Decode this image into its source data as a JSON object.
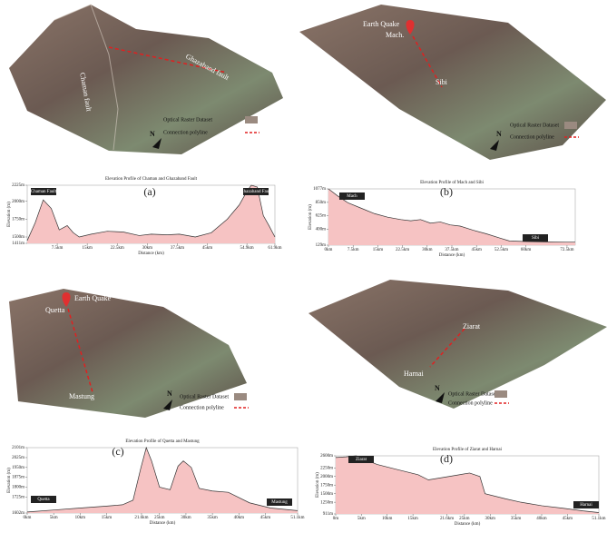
{
  "terrains": [
    {
      "labels": [
        "Chaman fault",
        "Ghazaband fault"
      ],
      "legend": [
        "Optical Raster Dataset",
        "Connection polyline"
      ],
      "north": "N"
    },
    {
      "labels": [
        "Earth Quake",
        "Mach.",
        "Sibi"
      ],
      "legend": [
        "Optical Raster Dataset",
        "Connection polyline"
      ],
      "north": "N"
    },
    {
      "labels": [
        "Earth Quake",
        "Quetta",
        "Mastung"
      ],
      "legend": [
        "Optical Raster Dataset",
        "Connection polyline"
      ],
      "north": "N"
    },
    {
      "labels": [
        "Ziarat",
        "Harnai"
      ],
      "legend": [
        "Optical Raster Dataset",
        "Connection polyline"
      ],
      "north": "N"
    }
  ],
  "chart_data": [
    {
      "type": "area",
      "title": "Elevation Profile of Chaman and Ghazaband Fault",
      "panel": "(a)",
      "x_label": "Distance (km)",
      "y_label": "Elevation (m)",
      "annotations": [
        "Chaman Fault",
        "Ghazaband Fault"
      ],
      "color": "#f6c3c3",
      "line_color": "#333333",
      "x": [
        0,
        2,
        4,
        6,
        8,
        10,
        11.5,
        13,
        16,
        20,
        24,
        28,
        31,
        35,
        38,
        42,
        46,
        50,
        53,
        55,
        56,
        57.5,
        59,
        60.5,
        61.9
      ],
      "values": [
        1450,
        1700,
        2020,
        1900,
        1600,
        1660,
        1560,
        1500,
        1540,
        1580,
        1570,
        1520,
        1540,
        1530,
        1540,
        1500,
        1560,
        1750,
        1950,
        2150,
        2225,
        2200,
        1800,
        1650,
        1500
      ],
      "xlim": [
        0,
        61.9
      ],
      "ylim": [
        1411,
        2225
      ],
      "xticks": [
        {
          "value": 7.5,
          "label": "7.5km"
        },
        {
          "value": 15,
          "label": "15km"
        },
        {
          "value": 22.5,
          "label": "22.5km"
        },
        {
          "value": 30,
          "label": "30km"
        },
        {
          "value": 37.5,
          "label": "37.5km"
        },
        {
          "value": 45,
          "label": "45km"
        },
        {
          "value": 54.9,
          "label": "54.9km"
        },
        {
          "value": 61.9,
          "label": "61.9km"
        }
      ],
      "yticks": [
        {
          "value": 1411,
          "label": "1411m"
        },
        {
          "value": 1500,
          "label": "1500m"
        },
        {
          "value": 1750,
          "label": "1750m"
        },
        {
          "value": 2000,
          "label": "2000m"
        },
        {
          "value": 2225,
          "label": "2225m"
        }
      ]
    },
    {
      "type": "area",
      "title": "Elevation Profile of Mach and Sibi",
      "panel": "(b)",
      "x_label": "Distance (km)",
      "y_label": "Elevation (m)",
      "annotations": [
        "Mach",
        "Sibi"
      ],
      "color": "#f6c3c3",
      "line_color": "#333333",
      "x": [
        0,
        3,
        6,
        10,
        14,
        18,
        22,
        25,
        28,
        31,
        34,
        37,
        40,
        44,
        48,
        52,
        55,
        60,
        66,
        72,
        75
      ],
      "values": [
        1077,
        950,
        840,
        750,
        660,
        600,
        560,
        540,
        560,
        500,
        520,
        470,
        450,
        380,
        320,
        250,
        200,
        190,
        185,
        180,
        180
      ],
      "xlim": [
        0,
        75
      ],
      "ylim": [
        129,
        1077
      ],
      "xticks": [
        {
          "value": 0,
          "label": "0km"
        },
        {
          "value": 7.5,
          "label": "7.5km"
        },
        {
          "value": 15,
          "label": "15km"
        },
        {
          "value": 22.5,
          "label": "22.5km"
        },
        {
          "value": 30,
          "label": "30km"
        },
        {
          "value": 37.5,
          "label": "37.5km"
        },
        {
          "value": 45,
          "label": "45km"
        },
        {
          "value": 52.5,
          "label": "52.5km"
        },
        {
          "value": 60,
          "label": "60km"
        },
        {
          "value": 72.5,
          "label": "72.5km"
        }
      ],
      "yticks": [
        {
          "value": 129,
          "label": "129m"
        },
        {
          "value": 400,
          "label": "400m"
        },
        {
          "value": 625,
          "label": "625m"
        },
        {
          "value": 850,
          "label": "850m"
        },
        {
          "value": 1077,
          "label": "1077m"
        }
      ]
    },
    {
      "type": "area",
      "title": "Elevation Profile of Quetta and Mastung",
      "panel": "(c)",
      "x_label": "Distance (km)",
      "y_label": "Elevation (m)",
      "annotations": [
        "Quetta",
        "Mastung"
      ],
      "color": "#f6c3c3",
      "line_color": "#333333",
      "x": [
        0,
        5,
        10,
        15,
        18,
        20,
        21.5,
        22.5,
        23.5,
        25,
        27,
        28.5,
        29.5,
        31,
        32.5,
        35,
        38,
        42,
        46,
        51.1
      ],
      "values": [
        1610,
        1625,
        1640,
        1655,
        1665,
        1700,
        1950,
        2101,
        2000,
        1800,
        1780,
        1960,
        2000,
        1950,
        1790,
        1770,
        1760,
        1680,
        1640,
        1620
      ],
      "xlim": [
        0,
        51.1
      ],
      "ylim": [
        1602,
        2101
      ],
      "xticks": [
        {
          "value": 0,
          "label": "0km"
        },
        {
          "value": 5,
          "label": "5km"
        },
        {
          "value": 10,
          "label": "10km"
        },
        {
          "value": 15,
          "label": "15km"
        },
        {
          "value": 21.6,
          "label": "21.6km"
        },
        {
          "value": 25,
          "label": "25km"
        },
        {
          "value": 30,
          "label": "30km"
        },
        {
          "value": 35,
          "label": "35km"
        },
        {
          "value": 40,
          "label": "40km"
        },
        {
          "value": 45,
          "label": "45km"
        },
        {
          "value": 51.1,
          "label": "51.1km"
        }
      ],
      "yticks": [
        {
          "value": 1602,
          "label": "1602m"
        },
        {
          "value": 1725,
          "label": "1725m"
        },
        {
          "value": 1800,
          "label": "1800m"
        },
        {
          "value": 1875,
          "label": "1875m"
        },
        {
          "value": 1950,
          "label": "1950m"
        },
        {
          "value": 2025,
          "label": "2025m"
        },
        {
          "value": 2101,
          "label": "2101m"
        }
      ]
    },
    {
      "type": "area",
      "title": "Elevation Profile of Ziarat and Harnai",
      "panel": "(d)",
      "x_label": "Distance (km)",
      "y_label": "Elevation (m)",
      "annotations": [
        "Ziarat",
        "Harnai"
      ],
      "color": "#f6c3c3",
      "line_color": "#333333",
      "x": [
        0,
        2,
        4,
        8,
        12,
        16,
        18,
        22,
        26,
        28,
        29,
        33,
        36,
        40,
        44,
        48,
        51.1
      ],
      "values": [
        2550,
        2570,
        2600,
        2350,
        2200,
        2050,
        1900,
        2000,
        2100,
        2000,
        1500,
        1350,
        1250,
        1150,
        1080,
        1000,
        950
      ],
      "xlim": [
        0,
        51.1
      ],
      "ylim": [
        911,
        2600
      ],
      "xticks": [
        {
          "value": 0,
          "label": "0m"
        },
        {
          "value": 5,
          "label": "5km"
        },
        {
          "value": 10,
          "label": "10km"
        },
        {
          "value": 15,
          "label": "15km"
        },
        {
          "value": 21.6,
          "label": "21.6km"
        },
        {
          "value": 25,
          "label": "25km"
        },
        {
          "value": 30,
          "label": "30km"
        },
        {
          "value": 35,
          "label": "35km"
        },
        {
          "value": 40,
          "label": "40km"
        },
        {
          "value": 45,
          "label": "45km"
        },
        {
          "value": 51.1,
          "label": "51.1km"
        }
      ],
      "yticks": [
        {
          "value": 911,
          "label": "911m"
        },
        {
          "value": 1250,
          "label": "1250m"
        },
        {
          "value": 1500,
          "label": "1500m"
        },
        {
          "value": 1750,
          "label": "1750m"
        },
        {
          "value": 2000,
          "label": "2000m"
        },
        {
          "value": 2250,
          "label": "2250m"
        },
        {
          "value": 2600,
          "label": "2600m"
        }
      ]
    }
  ]
}
